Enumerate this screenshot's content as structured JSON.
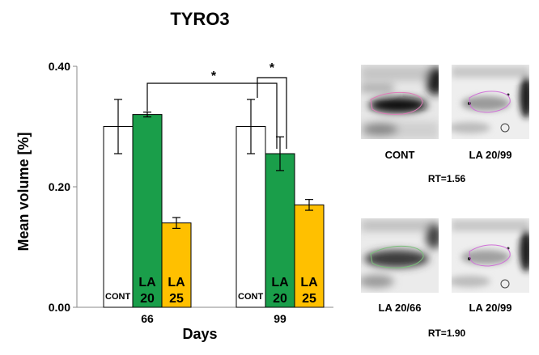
{
  "chart_data": {
    "type": "bar",
    "title": "TYRO3",
    "xlabel": "Days",
    "ylabel": "Mean volume [%]",
    "ylim": [
      0,
      0.4
    ],
    "yticks": [
      "0.00",
      "0.20",
      "0.40"
    ],
    "categories": [
      "66",
      "99"
    ],
    "series": [
      {
        "label_lines": [
          "CONT"
        ],
        "color": "#ffffff",
        "values": [
          0.3,
          0.3
        ],
        "errors": [
          0.045,
          0.045
        ]
      },
      {
        "label_lines": [
          "LA",
          "20"
        ],
        "color": "#1a9e4a",
        "values": [
          0.32,
          0.255
        ],
        "errors": [
          0.004,
          0.028
        ]
      },
      {
        "label_lines": [
          "LA",
          "25"
        ],
        "color": "#ffc000",
        "values": [
          0.14,
          0.17
        ],
        "errors": [
          0.009,
          0.009
        ]
      }
    ],
    "significance": [
      "*",
      "*"
    ],
    "grid": false,
    "legend": "none"
  },
  "panels": [
    {
      "caption": "CONT",
      "contour_color": "#e07ab8"
    },
    {
      "caption": "LA 20/99",
      "contour_color": "#d070d8"
    },
    {
      "caption": "LA 20/66",
      "contour_color": "#7ac07a"
    },
    {
      "caption": "LA 20/99",
      "contour_color": "#d070d8"
    }
  ],
  "rt_labels": [
    "RT=1.56",
    "RT=1.90"
  ]
}
